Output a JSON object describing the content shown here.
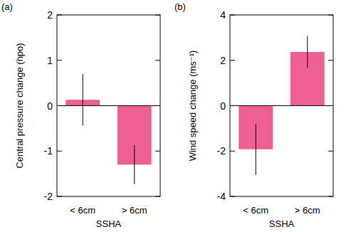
{
  "chart_data": [
    {
      "type": "bar",
      "title": "(a)",
      "x_label": "SSHA",
      "y_label": "Central pressure change (hpo)",
      "categories": [
        "< 6cm",
        "> 6cm"
      ],
      "values": [
        0.13,
        -1.3
      ],
      "errors": [
        0.57,
        0.43
      ],
      "color": "#ee5f93",
      "ylim": [
        -2,
        2
      ],
      "yticks": [
        -2,
        -1,
        0,
        1,
        2
      ]
    },
    {
      "type": "bar",
      "title": "(b)",
      "x_label": "SSHA",
      "y_label": "Wind speed change (ms⁻¹)",
      "categories": [
        "< 6cm",
        "> 6cm"
      ],
      "values": [
        -1.92,
        2.37
      ],
      "errors": [
        1.13,
        0.7
      ],
      "color": "#ee5f93",
      "ylim": [
        -4,
        4
      ],
      "yticks": [
        -4,
        -2,
        0,
        2,
        4
      ]
    }
  ]
}
